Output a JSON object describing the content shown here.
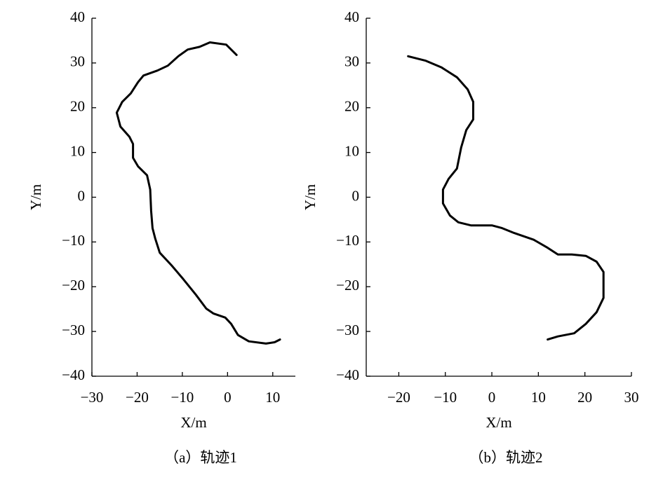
{
  "chart_data": [
    {
      "type": "line",
      "caption": "（a）轨迹1",
      "x_label": "X/m",
      "y_label": "Y/m",
      "xlim": [
        -30,
        15
      ],
      "ylim": [
        -40,
        40
      ],
      "xticks": [
        {
          "value": -30,
          "label": "−30"
        },
        {
          "value": -20,
          "label": "−20"
        },
        {
          "value": -10,
          "label": "−10"
        },
        0,
        10
      ],
      "yticks": [
        {
          "value": -40,
          "label": "−40"
        },
        {
          "value": -30,
          "label": "−30"
        },
        {
          "value": -20,
          "label": "−20"
        },
        {
          "value": -10,
          "label": "−10"
        },
        0,
        10,
        20,
        30,
        40
      ],
      "series": [
        {
          "color": "#000000",
          "x": [
            2.0,
            -0.3,
            -3.9,
            -6.2,
            -8.8,
            -10.9,
            -13.2,
            -15.5,
            -18.6,
            -19.8,
            -21.4,
            -23.3,
            -24.5,
            -23.7,
            -21.7,
            -20.9,
            -20.9,
            -19.8,
            -17.8,
            -17.1,
            -16.9,
            -16.6,
            -16.0,
            -15.0,
            -12.4,
            -9.8,
            -7.0,
            -4.7,
            -3.1,
            -0.5,
            0.8,
            2.3,
            4.7,
            8.5,
            10.4,
            11.6
          ],
          "values": [
            31.8,
            34.1,
            34.6,
            33.6,
            33.0,
            31.5,
            29.4,
            28.3,
            27.2,
            25.7,
            23.2,
            21.3,
            18.9,
            15.8,
            13.5,
            11.9,
            8.8,
            6.9,
            4.9,
            1.7,
            -3.0,
            -6.9,
            -9.2,
            -12.4,
            -15.2,
            -18.3,
            -21.8,
            -24.9,
            -26.0,
            -26.9,
            -28.3,
            -30.8,
            -32.2,
            -32.7,
            -32.4,
            -31.8
          ]
        }
      ]
    },
    {
      "type": "line",
      "caption": "（b）轨迹2",
      "x_label": "X/m",
      "y_label": "Y/m",
      "xlim": [
        -27,
        30
      ],
      "ylim": [
        -40,
        40
      ],
      "xticks": [
        {
          "value": -20,
          "label": "−20"
        },
        {
          "value": -10,
          "label": "−10"
        },
        0,
        10,
        20,
        30
      ],
      "yticks": [
        {
          "value": -40,
          "label": "−40"
        },
        {
          "value": -30,
          "label": "−30"
        },
        {
          "value": -20,
          "label": "−20"
        },
        {
          "value": -10,
          "label": "−10"
        },
        0,
        10,
        20,
        30,
        40
      ],
      "series": [
        {
          "color": "#000000",
          "x": [
            -18.0,
            -14.2,
            -10.8,
            -7.5,
            -5.2,
            -4.0,
            -4.0,
            -5.5,
            -6.6,
            -7.5,
            -9.3,
            -10.5,
            -10.5,
            -9.0,
            -7.2,
            -4.5,
            0,
            2.2,
            4.8,
            9.0,
            12.0,
            14.2,
            17.2,
            20.2,
            22.5,
            24.0,
            24.0,
            22.5,
            20.2,
            17.7,
            14.2,
            12.0
          ],
          "values": [
            31.5,
            30.5,
            29.0,
            26.8,
            24.1,
            21.3,
            17.4,
            15.0,
            11.1,
            6.4,
            4.1,
            1.7,
            -1.4,
            -4.1,
            -5.6,
            -6.3,
            -6.3,
            -6.9,
            -8.0,
            -9.5,
            -11.3,
            -12.8,
            -12.8,
            -13.1,
            -14.4,
            -16.7,
            -22.5,
            -25.7,
            -28.3,
            -30.4,
            -31.1,
            -31.8
          ]
        }
      ]
    }
  ]
}
